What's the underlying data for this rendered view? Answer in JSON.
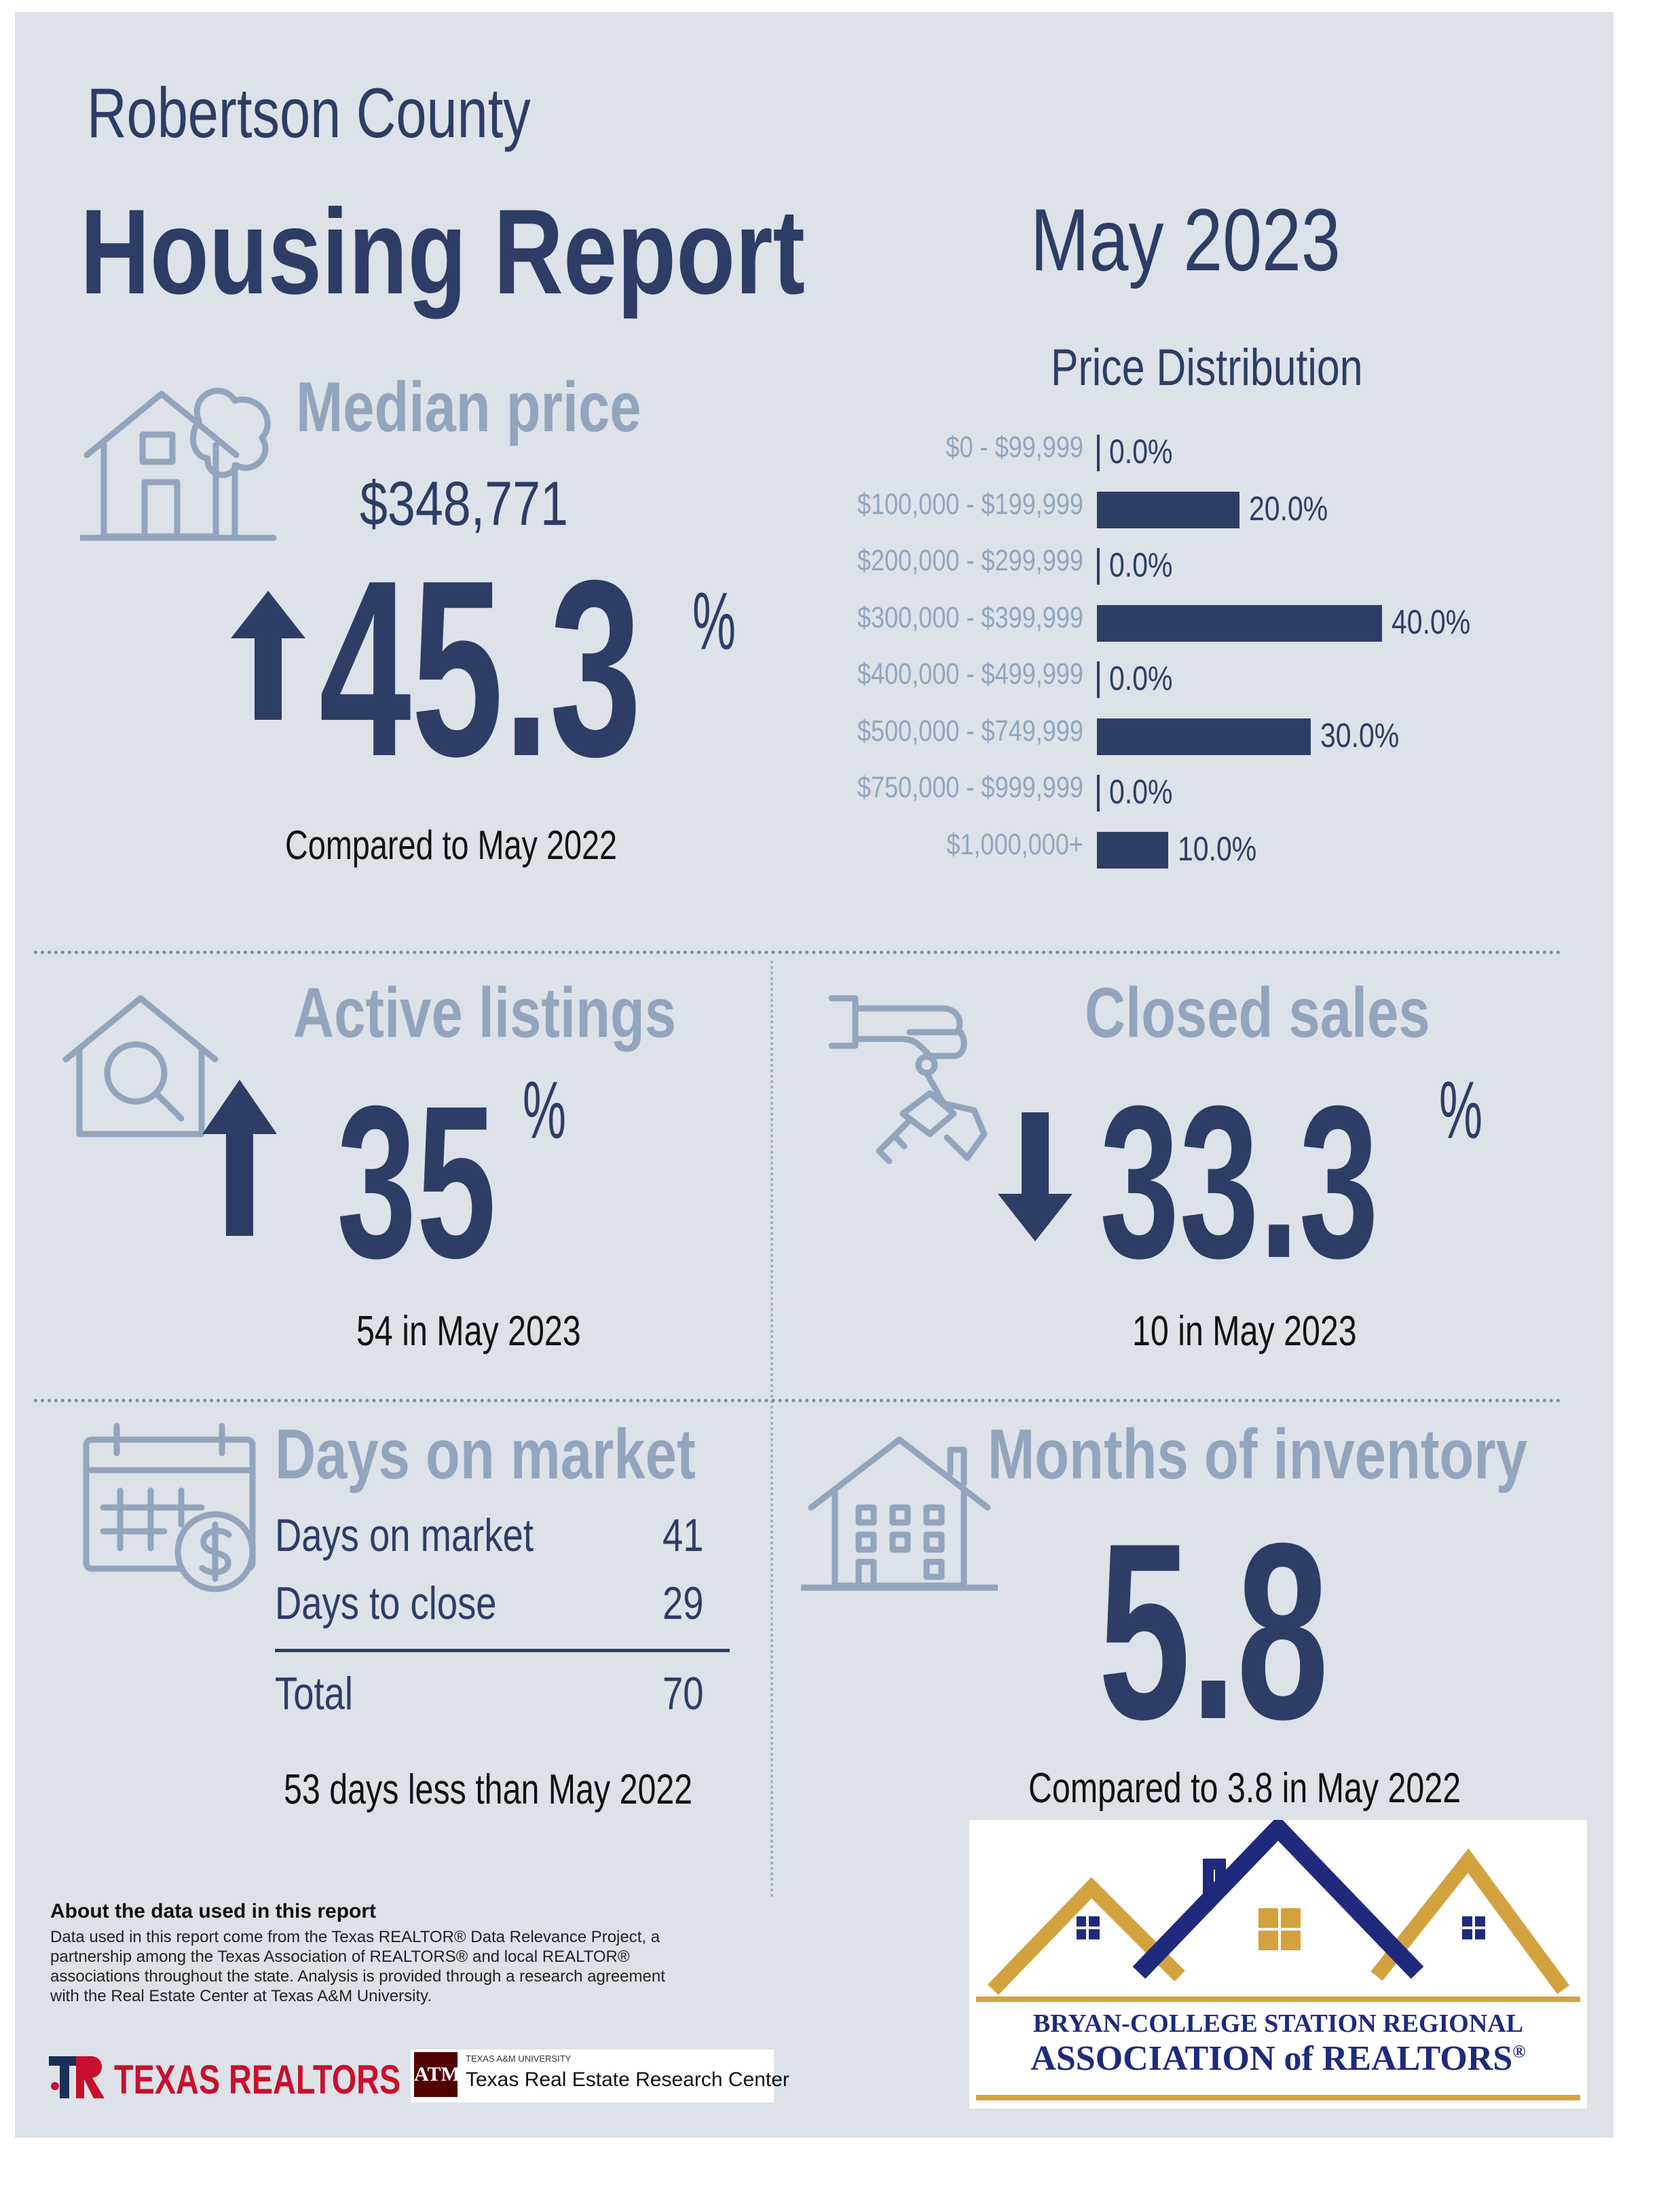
{
  "header": {
    "county": "Robertson County",
    "title": "Housing Report",
    "period": "May 2023"
  },
  "median_price": {
    "label": "Median price",
    "value": "$348,771",
    "change": "45.3",
    "unit": "%",
    "direction": "up",
    "comparison": "Compared to May 2022",
    "icon": "house-with-tree-icon"
  },
  "price_distribution": {
    "title": "Price Distribution",
    "chart_data": {
      "type": "bar",
      "orientation": "horizontal",
      "title": "Price Distribution",
      "categories": [
        "$0 - $99,999",
        "$100,000 - $199,999",
        "$200,000 - $299,999",
        "$300,000 - $399,999",
        "$400,000 - $499,999",
        "$500,000 - $749,999",
        "$750,000 - $999,999",
        "$1,000,000+"
      ],
      "values": [
        0.0,
        20.0,
        0.0,
        40.0,
        0.0,
        30.0,
        0.0,
        10.0
      ],
      "value_labels": [
        "0.0%",
        "20.0%",
        "0.0%",
        "40.0%",
        "0.0%",
        "30.0%",
        "0.0%",
        "10.0%"
      ],
      "xlim": [
        0,
        40
      ],
      "grid": false,
      "bar_color": "#2e3d66"
    }
  },
  "active_listings": {
    "label": "Active listings",
    "change": "35",
    "unit": "%",
    "direction": "up",
    "detail": "54 in May 2023",
    "icon": "house-magnifier-icon"
  },
  "closed_sales": {
    "label": "Closed sales",
    "change": "33.3",
    "unit": "%",
    "direction": "down",
    "detail": "10 in May 2023",
    "icon": "hand-with-keys-icon"
  },
  "days_on_market": {
    "label": "Days on market",
    "rows": [
      {
        "label": "Days on market",
        "value": "41"
      },
      {
        "label": "Days to close",
        "value": "29"
      }
    ],
    "total": {
      "label": "Total",
      "value": "70"
    },
    "comparison": "53 days less than May 2022",
    "icon": "calendar-dollar-icon"
  },
  "months_inventory": {
    "label": "Months of inventory",
    "value": "5.8",
    "comparison": "Compared to 3.8 in May 2022",
    "icon": "building-icon"
  },
  "footer": {
    "about_title": "About the data used in this report",
    "about_lines": [
      "Data used in this report come from the Texas REALTOR® Data Relevance Project, a",
      "partnership among the Texas Association of REALTORS® and local REALTOR®",
      "associations throughout the state. Analysis is provided through a research agreement",
      "with the Real Estate Center at Texas A&M University."
    ],
    "logo_texas_realtors": "TEXAS REALTORS",
    "logo_tamu_small": "TEXAS A&M UNIVERSITY",
    "logo_tamu_name": "Texas Real Estate Research Center",
    "logo_tamu_mark": "ATM"
  },
  "association_logo": {
    "line1": "BRYAN-COLLEGE STATION REGIONAL",
    "line2": "ASSOCIATION of REALTORS",
    "reg": "®",
    "gold": "#d3a23e",
    "navy": "#1f2a7c"
  },
  "colors": {
    "background": "#dde2e8",
    "navy": "#2e3d66",
    "light_blue_grey": "#92a5bd"
  }
}
